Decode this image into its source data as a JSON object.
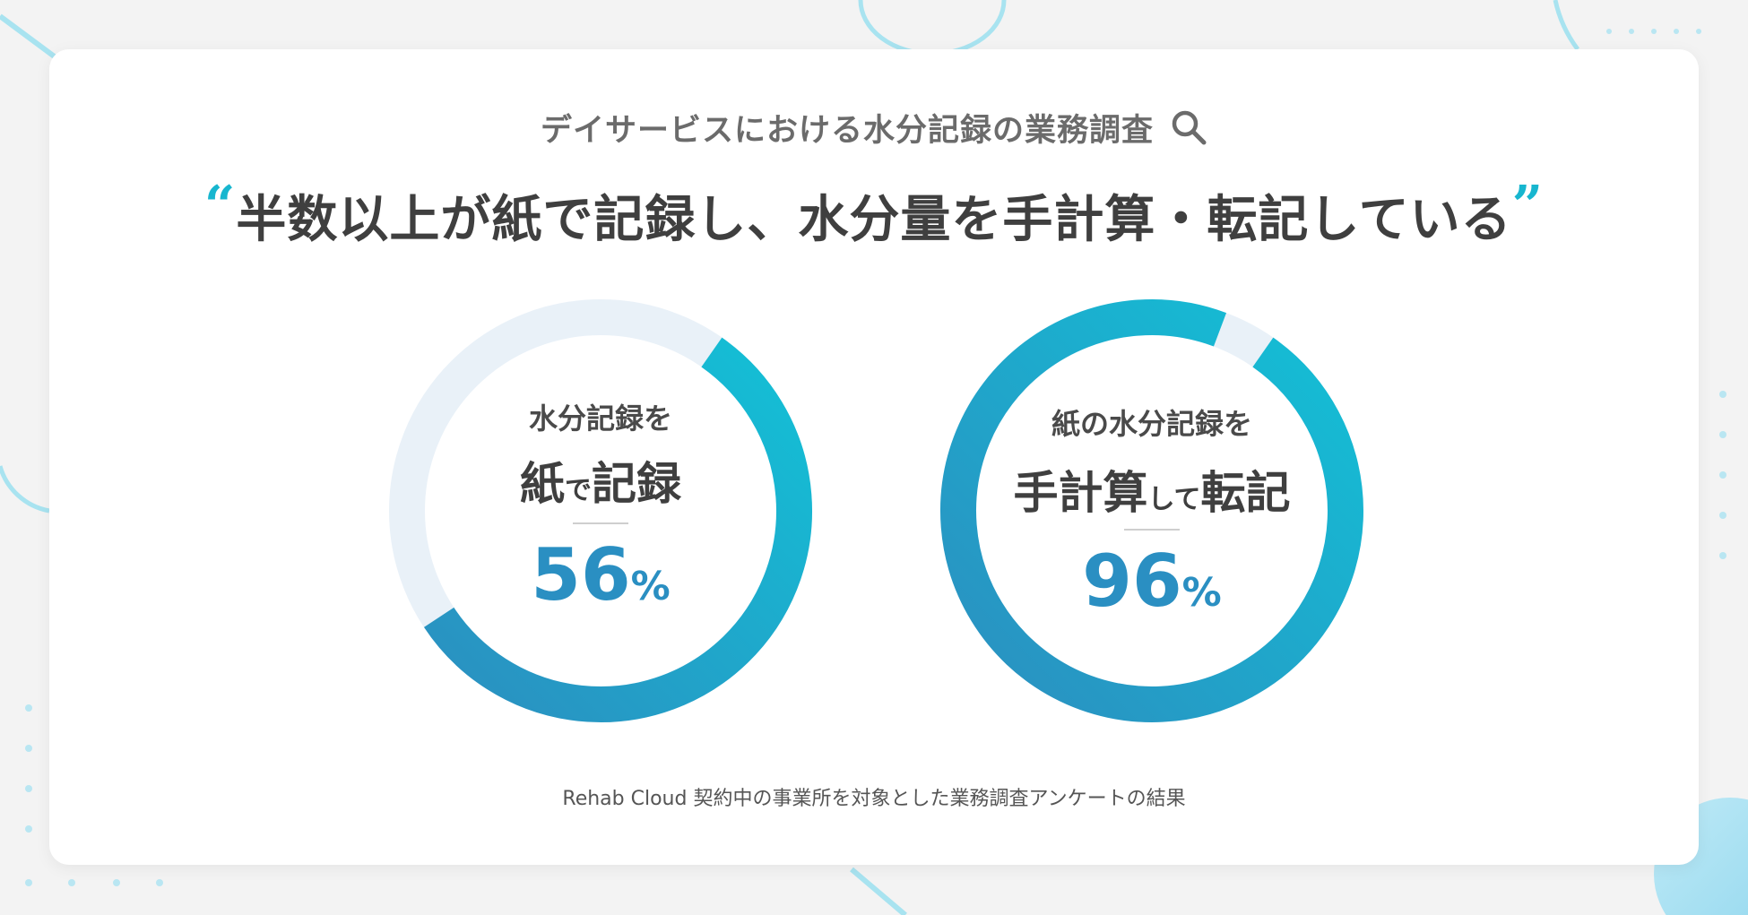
{
  "subtitle": "デイサービスにおける水分記録の業務調査",
  "headline": {
    "open_quote": "“",
    "text": "半数以上が紙で記録し、水分量を手計算・転記している",
    "close_quote": "”"
  },
  "chart_data": [
    {
      "type": "pie",
      "label_top": "水分記録を",
      "label_main_1": "紙",
      "label_main_small": "で",
      "label_main_2": "記録",
      "value": 56,
      "value_text": "56",
      "unit": "%"
    },
    {
      "type": "pie",
      "label_top": "紙の水分記録を",
      "label_main_1": "手計算",
      "label_main_small": "して",
      "label_main_2": "転記",
      "value": 96,
      "value_text": "96",
      "unit": "%"
    }
  ],
  "colors": {
    "ring_start": "#13c0d6",
    "ring_end": "#2b8fc0",
    "ring_track": "#e9f1f8",
    "accent": "#17b6cf",
    "percent": "#2a8fc2"
  },
  "icons": {
    "search": "search-icon"
  },
  "footnote": "Rehab Cloud 契約中の事業所を対象とした業務調査アンケートの結果"
}
